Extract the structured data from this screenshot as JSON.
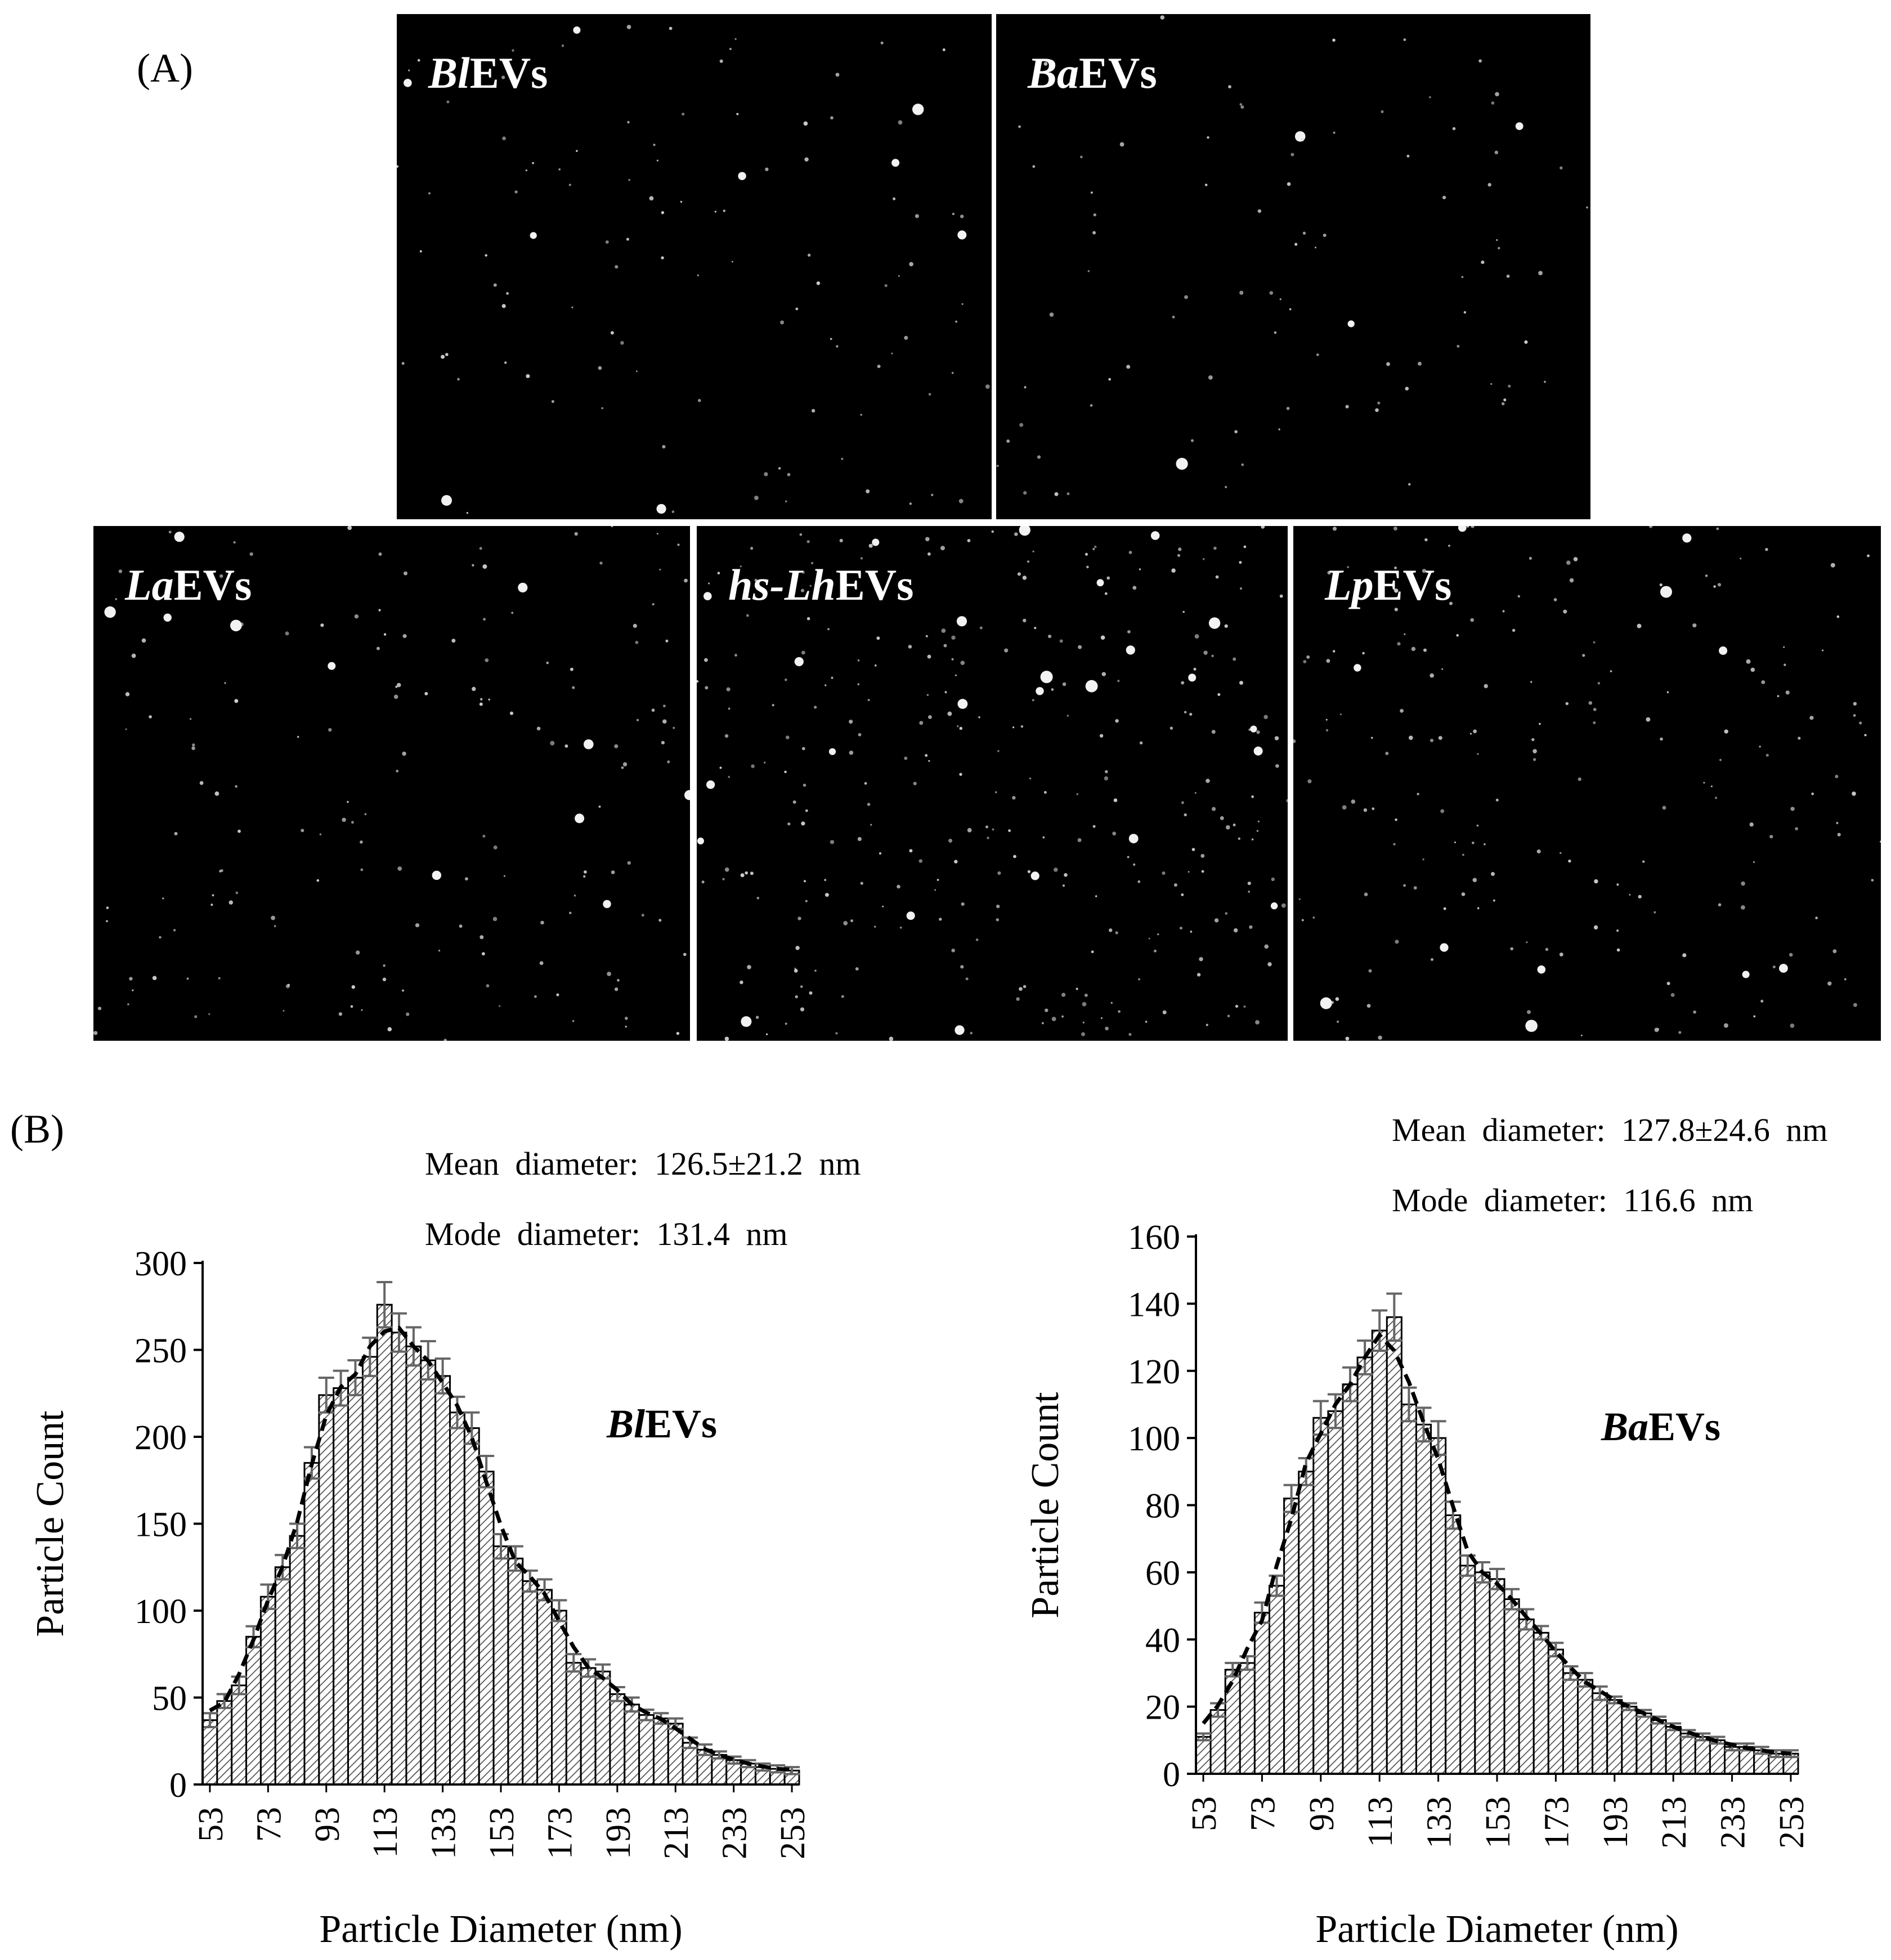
{
  "panels": {
    "a_label": "(A)",
    "b_label": "(B)",
    "micrographs": [
      {
        "italic": "Bl",
        "suffix": "EVs"
      },
      {
        "italic": "Ba",
        "suffix": "EVs"
      },
      {
        "italic": "La",
        "suffix": "EVs"
      },
      {
        "italic": "hs-Lh",
        "suffix": "EVs"
      },
      {
        "italic": "Lp",
        "suffix": "EVs"
      }
    ]
  },
  "colors": {
    "background": "#ffffff",
    "micrograph": "#000000",
    "bar_border": "#000000",
    "error_bar": "#666666",
    "hatch": "#555555"
  },
  "chart_data": [
    {
      "type": "bar",
      "title": "",
      "in_plot_label_italic": "Bl",
      "in_plot_label_suffix": "EVs",
      "stats": [
        "Mean diameter: 126.5±21.2 nm",
        "Mode diameter: 131.4 nm"
      ],
      "xlabel": "Particle Diameter (nm)",
      "ylabel": "Particle Count",
      "ylim": [
        0,
        300
      ],
      "yticks": [
        0,
        50,
        100,
        150,
        200,
        250,
        300
      ],
      "xtick_labels": [
        "53",
        "73",
        "93",
        "113",
        "133",
        "153",
        "173",
        "193",
        "213",
        "233",
        "253"
      ],
      "trendline": "dashed",
      "x": [
        53,
        58,
        63,
        68,
        73,
        78,
        83,
        88,
        93,
        98,
        103,
        108,
        113,
        118,
        123,
        128,
        133,
        138,
        143,
        148,
        153,
        158,
        163,
        168,
        173,
        178,
        183,
        188,
        193,
        198,
        203,
        208,
        213,
        218,
        223,
        228,
        233,
        238,
        243,
        248,
        253
      ],
      "values": [
        37,
        48,
        57,
        85,
        108,
        125,
        143,
        185,
        224,
        228,
        234,
        246,
        276,
        260,
        252,
        244,
        235,
        214,
        205,
        180,
        137,
        130,
        117,
        112,
        100,
        70,
        67,
        65,
        52,
        46,
        40,
        38,
        35,
        24,
        20,
        17,
        14,
        12,
        10,
        9,
        8
      ],
      "errors": [
        4,
        4,
        5,
        6,
        7,
        7,
        7,
        9,
        10,
        10,
        10,
        11,
        13,
        11,
        11,
        11,
        10,
        9,
        9,
        9,
        7,
        7,
        6,
        6,
        6,
        5,
        5,
        4,
        4,
        4,
        3,
        3,
        3,
        3,
        3,
        2,
        2,
        2,
        2,
        2,
        2
      ]
    },
    {
      "type": "bar",
      "title": "",
      "in_plot_label_italic": "Ba",
      "in_plot_label_suffix": "EVs",
      "stats": [
        "Mean diameter: 127.8±24.6 nm",
        "Mode diameter: 116.6 nm"
      ],
      "xlabel": "Particle Diameter (nm)",
      "ylabel": "Particle Count",
      "ylim": [
        0,
        160
      ],
      "yticks": [
        0,
        20,
        40,
        60,
        80,
        100,
        120,
        140,
        160
      ],
      "xtick_labels": [
        "53",
        "73",
        "93",
        "113",
        "133",
        "153",
        "173",
        "193",
        "213",
        "233",
        "253"
      ],
      "trendline": "dashed",
      "x": [
        53,
        58,
        63,
        68,
        73,
        78,
        83,
        88,
        93,
        98,
        103,
        108,
        113,
        118,
        123,
        128,
        133,
        138,
        143,
        148,
        153,
        158,
        163,
        168,
        173,
        178,
        183,
        188,
        193,
        198,
        203,
        208,
        213,
        218,
        223,
        228,
        233,
        238,
        243,
        248,
        253
      ],
      "values": [
        11,
        19,
        31,
        33,
        48,
        56,
        82,
        90,
        106,
        108,
        116,
        124,
        132,
        136,
        110,
        104,
        100,
        77,
        62,
        60,
        58,
        52,
        46,
        42,
        37,
        30,
        28,
        24,
        22,
        20,
        18,
        16,
        14,
        12,
        11,
        10,
        8,
        8,
        7,
        6,
        6
      ],
      "errors": [
        1,
        2,
        2,
        2,
        3,
        3,
        4,
        4,
        5,
        5,
        5,
        5,
        6,
        7,
        5,
        5,
        5,
        4,
        3,
        3,
        3,
        3,
        3,
        2,
        2,
        2,
        2,
        2,
        1,
        1,
        1,
        1,
        1,
        1,
        1,
        1,
        1,
        1,
        1,
        1,
        1
      ]
    }
  ]
}
